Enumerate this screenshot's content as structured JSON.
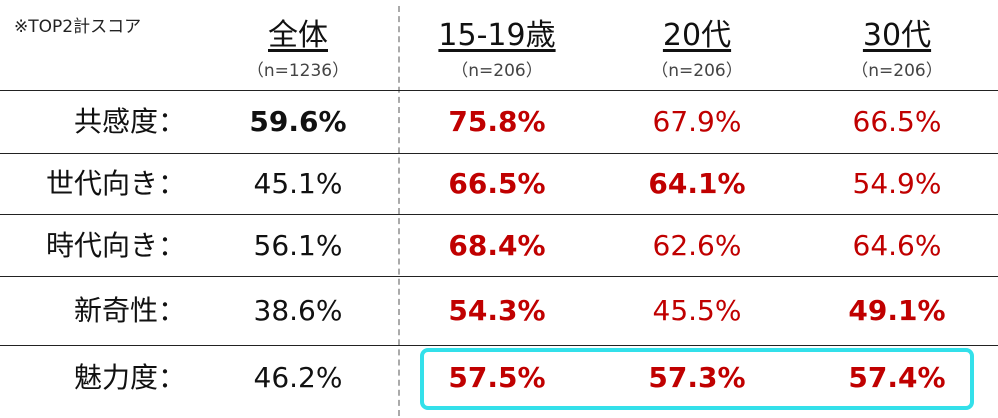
{
  "note": "※TOP2計スコア",
  "columns": [
    {
      "name": "全体",
      "n": "（n=1236）"
    },
    {
      "name": "15-19歳",
      "n": "（n=206）"
    },
    {
      "name": "20代",
      "n": "（n=206）"
    },
    {
      "name": "30代",
      "n": "（n=206）"
    }
  ],
  "rows": [
    {
      "label": "共感度：",
      "values": [
        "59.6%",
        "75.8%",
        "67.9%",
        "66.5%"
      ]
    },
    {
      "label": "世代向き：",
      "values": [
        "45.1%",
        "66.5%",
        "64.1%",
        "54.9%"
      ]
    },
    {
      "label": "時代向き：",
      "values": [
        "56.1%",
        "68.4%",
        "62.6%",
        "64.6%"
      ]
    },
    {
      "label": "新奇性：",
      "values": [
        "38.6%",
        "54.3%",
        "45.5%",
        "49.1%"
      ]
    },
    {
      "label": "魅力度：",
      "values": [
        "46.2%",
        "57.5%",
        "57.3%",
        "57.4%"
      ]
    }
  ]
}
